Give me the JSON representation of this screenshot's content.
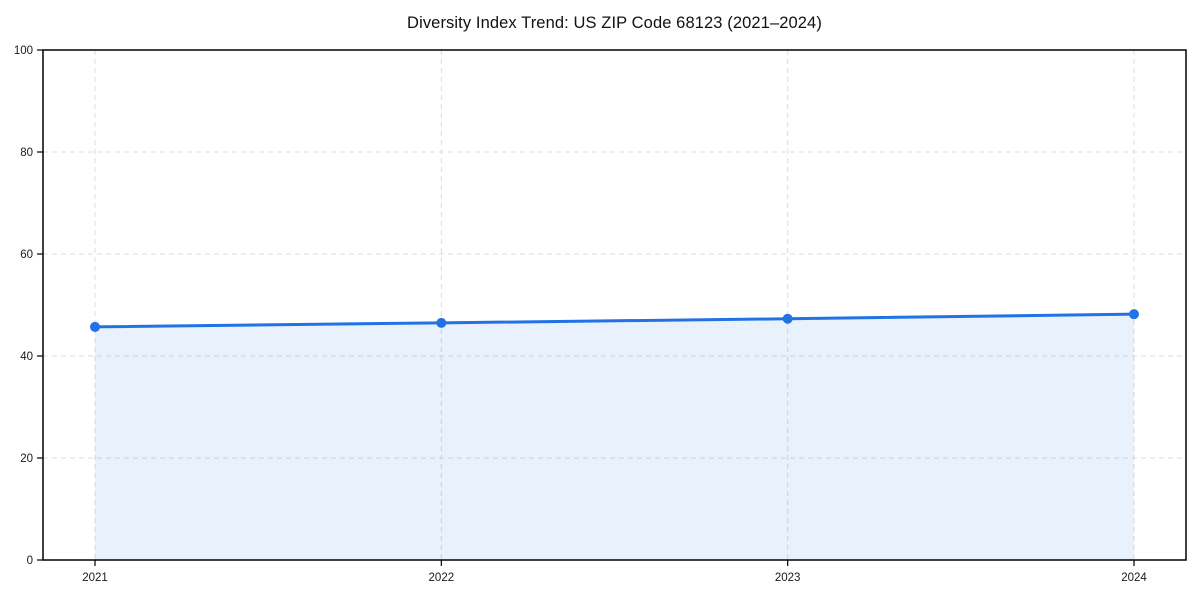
{
  "page": {
    "background": "#ffffff"
  },
  "chart_data": {
    "type": "line",
    "title": "Diversity Index Trend: US ZIP Code 68123 (2021–2024)",
    "categories": [
      "2021",
      "2022",
      "2023",
      "2024"
    ],
    "series": [
      {
        "name": "Diversity Index",
        "values": [
          45.7,
          46.5,
          47.3,
          48.2
        ]
      }
    ],
    "xlabel": "",
    "ylabel": "",
    "ylim": [
      0,
      100
    ],
    "yticks": [
      0,
      20,
      40,
      60,
      80,
      100
    ],
    "grid": true,
    "grid_style": "dashed",
    "legend": "none",
    "marker": "circle",
    "area_fill": true,
    "colors": {
      "line": "#2272e5",
      "marker": "#2272e5",
      "area": "rgba(34,114,229,0.10)",
      "grid": "#dcdcdc",
      "spine": "#000000",
      "title": "#111111",
      "tick_label": "#1a1a1a"
    }
  }
}
